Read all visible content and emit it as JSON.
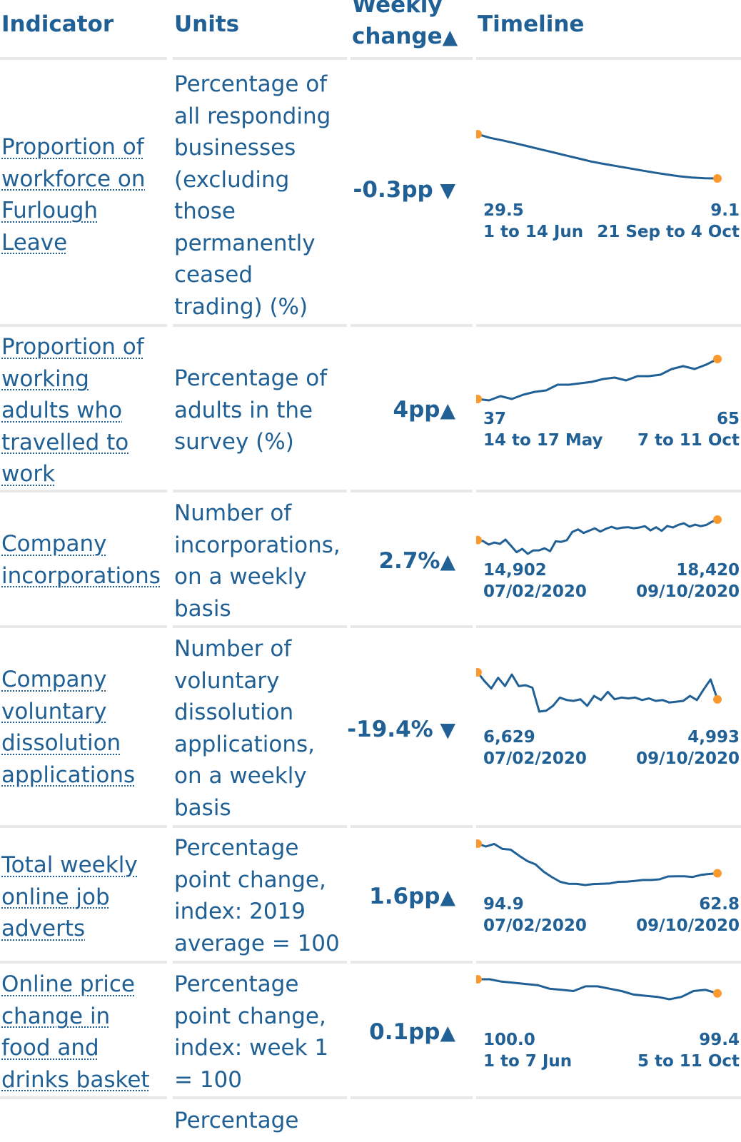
{
  "columns": {
    "indicator": "Indicator",
    "units": "Units",
    "weekly_change": "Weekly\nchange",
    "timeline": "Timeline"
  },
  "rows": [
    {
      "indicator": "Proportion of workforce on Furlough Leave",
      "units": "Percentage of all responding businesses (excluding those permanently ceased trading) (%)",
      "change": "-0.3pp",
      "direction": "down",
      "start_value": "29.5",
      "start_label": "1 to 14 Jun",
      "end_value": "9.1",
      "end_label": "21 Sep to 4 Oct",
      "series": [
        29.5,
        27.8,
        26.6,
        25.3,
        23.9,
        22.5,
        21.1,
        19.7,
        18.3,
        16.9,
        15.8,
        14.8,
        13.8,
        12.8,
        11.8,
        10.9,
        10.1,
        9.5,
        9.2,
        9.1
      ]
    },
    {
      "indicator": "Proportion of working adults who travelled to work",
      "units": "Percentage of adults in the survey (%)",
      "change": "4pp",
      "direction": "up",
      "start_value": "37",
      "start_label": "14 to 17 May",
      "end_value": "65",
      "end_label": "7 to 11 Oct",
      "series": [
        37,
        36,
        39,
        37,
        40,
        42,
        43,
        47,
        47,
        48,
        49,
        51,
        52,
        50,
        53,
        53,
        54,
        58,
        60,
        58,
        61,
        65
      ]
    },
    {
      "indicator": "Company incorporations",
      "units": "Number of incorporations, on a weekly basis",
      "change": "2.7%",
      "direction": "up",
      "start_value": "14,902",
      "start_label": "07/02/2020",
      "end_value": "18,420",
      "end_label": "09/10/2020",
      "series": [
        14902,
        14720,
        14120,
        14480,
        14240,
        14980,
        13900,
        12800,
        13380,
        12520,
        13120,
        13120,
        13480,
        12980,
        14680,
        14590,
        14880,
        16300,
        16740,
        16120,
        16520,
        16920,
        16360,
        16840,
        17180,
        16860,
        17050,
        17100,
        16930,
        17060,
        17290,
        16550,
        17100,
        16480,
        17320,
        17060,
        17520,
        17780,
        17220,
        17550,
        17290,
        17500,
        18050,
        18420
      ]
    },
    {
      "indicator": "Company voluntary dissolution applications",
      "units": "Number of voluntary dissolution applications, on a weekly basis",
      "change": "-19.4%",
      "direction": "down",
      "start_value": "6,629",
      "start_label": "07/02/2020",
      "end_value": "4,993",
      "end_label": "09/10/2020",
      "series": [
        6629,
        6100,
        5650,
        6300,
        5800,
        6500,
        5800,
        5850,
        5700,
        4250,
        4300,
        4600,
        5100,
        4950,
        4900,
        5000,
        4600,
        5200,
        4950,
        5450,
        5000,
        5100,
        5050,
        5100,
        4950,
        5050,
        4900,
        4950,
        4800,
        4850,
        4900,
        5200,
        4950,
        5600,
        6200,
        4993
      ]
    },
    {
      "indicator": "Total weekly online job adverts",
      "units": "Percentage point change, index: 2019 average = 100",
      "change": "1.6pp",
      "direction": "up",
      "start_value": "94.9",
      "start_label": "07/02/2020",
      "end_value": "62.8",
      "end_label": "09/10/2020",
      "series": [
        94.9,
        91.8,
        94.6,
        89.2,
        88.4,
        82,
        76.1,
        72.5,
        64.5,
        58.6,
        53.6,
        51.5,
        51.3,
        50.1,
        51.2,
        51.5,
        51.9,
        53.6,
        53.8,
        54.5,
        55.6,
        55.6,
        56.3,
        59.4,
        59.5,
        59.6,
        58.8,
        61.1,
        62.1,
        62.8
      ]
    },
    {
      "indicator": "Online price change in food and drinks basket",
      "units": "Percentage point change, index: week 1 = 100",
      "change": "0.1pp",
      "direction": "up",
      "start_value": "100.0",
      "start_label": "1 to 7 Jun",
      "end_value": "99.4",
      "end_label": "5 to 11 Oct",
      "series": [
        100.0,
        100.0,
        99.9,
        99.85,
        99.8,
        99.75,
        99.6,
        99.55,
        99.5,
        99.7,
        99.7,
        99.6,
        99.5,
        99.35,
        99.3,
        99.25,
        99.15,
        99.25,
        99.5,
        99.55,
        99.4
      ]
    }
  ],
  "partial_row": {
    "units": "Percentage"
  },
  "colors": {
    "text": "#206095",
    "line": "#206095",
    "marker": "#fa9a2e",
    "divider": "#e8e8e8"
  }
}
